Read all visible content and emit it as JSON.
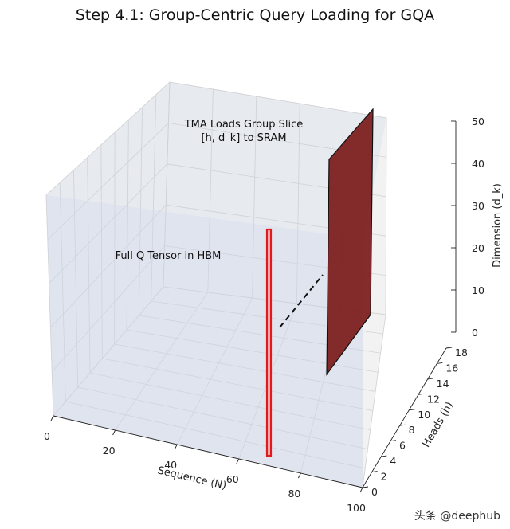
{
  "chart_data": {
    "type": "3d-scatter",
    "title": "Step 4.1: Group-Centric Query Loading for GQA",
    "xlabel": "Sequence (N)",
    "ylabel": "Heads (h)",
    "zlabel": "Dimension (d_k)",
    "xlim": [
      0,
      100
    ],
    "ylim": [
      0,
      18
    ],
    "zlim": [
      0,
      50
    ],
    "x_ticks": [
      "0",
      "20",
      "40",
      "60",
      "80",
      "100"
    ],
    "y_ticks": [
      "0",
      "2",
      "4",
      "6",
      "8",
      "10",
      "12",
      "14",
      "16",
      "18"
    ],
    "z_ticks": [
      "0",
      "10",
      "20",
      "30",
      "40",
      "50"
    ],
    "grid": true,
    "annotations": {
      "full_tensor": "Full Q Tensor in HBM",
      "load_line1": "TMA Loads Group Slice",
      "load_line2": "[h, d_k] to SRAM"
    },
    "elements": [
      {
        "name": "Full Q Tensor in HBM",
        "kind": "box",
        "color": "#dfe5f0"
      },
      {
        "name": "query slice",
        "kind": "thin-box",
        "color": "#e31a1c"
      },
      {
        "name": "group slice in SRAM",
        "kind": "plane",
        "color": "#7b1a1a"
      }
    ]
  },
  "watermark": "头条 @deephub"
}
